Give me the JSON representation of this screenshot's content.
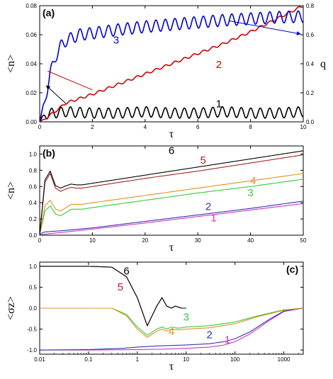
{
  "chart_data": [
    {
      "type": "line",
      "panel_label": "(a)",
      "xlabel": "τ",
      "ylabel": "<n>",
      "y2label": "q",
      "xlim": [
        0,
        10
      ],
      "ylim": [
        0,
        0.08
      ],
      "y2lim": [
        0,
        0.8
      ],
      "x_ticks": [
        "0",
        "2",
        "4",
        "6",
        "8",
        "10"
      ],
      "y_ticks": [
        "0.00",
        "0.02",
        "0.04",
        "0.06",
        "0.08"
      ],
      "y2_ticks": [
        "0.0",
        "0.2",
        "0.4",
        "0.6",
        "0.8"
      ],
      "series": [
        {
          "label": "1",
          "color": "#000000",
          "axis": "left",
          "x": [
            0,
            0.2,
            0.5,
            1,
            2,
            3,
            4,
            5,
            6,
            7,
            8,
            9,
            10
          ],
          "y": [
            0,
            0.005,
            0.006,
            0.007,
            0.006,
            0.006,
            0.007,
            0.006,
            0.006,
            0.007,
            0.006,
            0.006,
            0.007
          ],
          "oscillation_amplitude": 0.0035,
          "oscillation_period": 0.36
        },
        {
          "label": "2",
          "color": "#cc0000",
          "axis": "right",
          "x": [
            0,
            0.2,
            0.5,
            1,
            2,
            3,
            4,
            5,
            6,
            7,
            8,
            9,
            10
          ],
          "y": [
            0,
            0.02,
            0.06,
            0.13,
            0.19,
            0.26,
            0.33,
            0.4,
            0.47,
            0.54,
            0.62,
            0.71,
            0.8
          ],
          "oscillation_amplitude": 0.008,
          "oscillation_period": 0.36
        },
        {
          "label": "3",
          "color": "#0000cc",
          "axis": "left",
          "x": [
            0,
            0.2,
            0.4,
            0.6,
            0.8,
            1.0,
            1.5,
            2,
            3,
            4,
            5,
            6,
            7,
            8,
            9,
            10
          ],
          "y": [
            0,
            0.015,
            0.033,
            0.045,
            0.052,
            0.056,
            0.06,
            0.061,
            0.0635,
            0.0655,
            0.067,
            0.0685,
            0.07,
            0.071,
            0.072,
            0.0725
          ],
          "oscillation_amplitude": 0.004,
          "oscillation_period": 0.36
        }
      ],
      "annotations": [
        {
          "text": "1",
          "x": 6.8,
          "y": 0.01
        },
        {
          "text": "2",
          "x": 6.8,
          "y": 0.037
        },
        {
          "text": "3",
          "x": 2.9,
          "y": 0.054
        }
      ]
    },
    {
      "type": "line",
      "panel_label": "(b)",
      "xlabel": "τ",
      "ylabel": "<n>",
      "xlim": [
        0,
        50
      ],
      "ylim": [
        0,
        1.1
      ],
      "x_ticks": [
        "0",
        "10",
        "20",
        "30",
        "40",
        "50"
      ],
      "y_ticks": [
        "0.0",
        "0.2",
        "0.4",
        "0.6",
        "0.8",
        "1.0"
      ],
      "series": [
        {
          "label": "1",
          "color": "#cc33cc",
          "x": [
            0,
            0.5,
            1,
            2,
            5,
            10,
            20,
            30,
            40,
            50
          ],
          "y": [
            0,
            0.008,
            0.012,
            0.02,
            0.04,
            0.075,
            0.15,
            0.23,
            0.31,
            0.39
          ]
        },
        {
          "label": "2",
          "color": "#3333aa",
          "x": [
            0,
            0.5,
            1,
            2,
            5,
            10,
            20,
            30,
            40,
            50
          ],
          "y": [
            0,
            0.03,
            0.04,
            0.045,
            0.06,
            0.09,
            0.17,
            0.25,
            0.33,
            0.42
          ]
        },
        {
          "label": "3",
          "color": "#33cc33",
          "x": [
            0,
            1,
            2,
            3,
            4,
            5,
            6,
            7,
            8,
            10,
            20,
            30,
            40,
            50
          ],
          "y": [
            0,
            0.3,
            0.36,
            0.26,
            0.24,
            0.28,
            0.32,
            0.32,
            0.32,
            0.34,
            0.43,
            0.52,
            0.6,
            0.69
          ]
        },
        {
          "label": "4",
          "color": "#e09020",
          "x": [
            0,
            1,
            2,
            3,
            4,
            5,
            6,
            7,
            8,
            10,
            20,
            30,
            40,
            50
          ],
          "y": [
            0,
            0.36,
            0.43,
            0.32,
            0.3,
            0.34,
            0.38,
            0.38,
            0.38,
            0.4,
            0.49,
            0.58,
            0.67,
            0.76
          ]
        },
        {
          "label": "5",
          "color": "#aa2222",
          "x": [
            0,
            1,
            2,
            3,
            4,
            5,
            6,
            7,
            8,
            10,
            20,
            30,
            40,
            50
          ],
          "y": [
            0,
            0.65,
            0.76,
            0.58,
            0.54,
            0.57,
            0.59,
            0.58,
            0.58,
            0.6,
            0.7,
            0.79,
            0.89,
            0.99
          ]
        },
        {
          "label": "6",
          "color": "#000000",
          "x": [
            0,
            1,
            2,
            3,
            4,
            5,
            6,
            7,
            8,
            10,
            20,
            30,
            40,
            50
          ],
          "y": [
            0,
            0.68,
            0.79,
            0.61,
            0.58,
            0.61,
            0.63,
            0.62,
            0.62,
            0.64,
            0.74,
            0.84,
            0.94,
            1.04
          ]
        }
      ],
      "annotations": [
        {
          "text": "1",
          "x": 33,
          "y": 0.17
        },
        {
          "text": "2",
          "x": 32,
          "y": 0.31
        },
        {
          "text": "3",
          "x": 40,
          "y": 0.48
        },
        {
          "text": "4",
          "x": 40.5,
          "y": 0.63
        },
        {
          "text": "5",
          "x": 31,
          "y": 0.88
        },
        {
          "text": "6",
          "x": 25,
          "y": 1.0
        }
      ]
    },
    {
      "type": "line",
      "panel_label": "(c)",
      "xlabel": "τ",
      "ylabel": "<σz>",
      "xscale": "log",
      "xlim": [
        0.01,
        2500
      ],
      "ylim": [
        -1.1,
        1.1
      ],
      "x_ticks": [
        "0.01",
        "0.1",
        "1",
        "10",
        "100",
        "1000"
      ],
      "y_ticks": [
        "-1.0",
        "-0.5",
        "0.0",
        "0.5",
        "1.0"
      ],
      "series": [
        {
          "label": "1",
          "color": "#cc33cc",
          "x": [
            0.01,
            0.1,
            1,
            3,
            10,
            30,
            60,
            100,
            200,
            500,
            1000,
            2500
          ],
          "y": [
            -1.0,
            -1.0,
            -0.99,
            -0.98,
            -0.96,
            -0.93,
            -0.88,
            -0.8,
            -0.62,
            -0.3,
            -0.08,
            0.0
          ]
        },
        {
          "label": "2",
          "color": "#3333aa",
          "x": [
            0.01,
            0.1,
            0.5,
            1,
            3,
            10,
            30,
            60,
            100,
            200,
            500,
            1000,
            2500
          ],
          "y": [
            -1.0,
            -0.99,
            -0.96,
            -0.93,
            -0.9,
            -0.88,
            -0.85,
            -0.8,
            -0.73,
            -0.57,
            -0.27,
            -0.07,
            0.0
          ]
        },
        {
          "label": "3",
          "color": "#33cc33",
          "x": [
            0.01,
            0.3,
            0.6,
            1,
            1.6,
            2.5,
            3.2,
            4,
            5,
            7,
            10,
            30,
            100,
            300,
            1000,
            2500
          ],
          "y": [
            0.0,
            0.0,
            -0.15,
            -0.45,
            -0.65,
            -0.5,
            -0.45,
            -0.5,
            -0.45,
            -0.48,
            -0.45,
            -0.42,
            -0.33,
            -0.18,
            -0.04,
            0.0
          ]
        },
        {
          "label": "4",
          "color": "#e09020",
          "x": [
            0.01,
            0.3,
            0.6,
            1,
            1.6,
            2.5,
            3.2,
            4,
            5,
            7,
            10,
            30,
            100,
            300,
            1000,
            2500
          ],
          "y": [
            0.0,
            0.0,
            -0.18,
            -0.5,
            -0.7,
            -0.55,
            -0.5,
            -0.55,
            -0.5,
            -0.52,
            -0.5,
            -0.47,
            -0.37,
            -0.2,
            -0.05,
            0.0
          ]
        },
        {
          "label": "5",
          "color": "#aa2222",
          "x": [
            0.01,
            0.1,
            0.3,
            0.6,
            1,
            1.6,
            2.5,
            3.2,
            4,
            5,
            6,
            8,
            10
          ],
          "y": [
            1.0,
            1.0,
            0.98,
            0.75,
            0.25,
            -0.42,
            0.05,
            0.25,
            0.05,
            0.0,
            0.05,
            0.0,
            0.0
          ]
        },
        {
          "label": "6",
          "color": "#000000",
          "x": [
            0.01,
            0.1,
            0.3,
            0.6,
            1,
            1.6,
            2.5,
            3.2,
            4,
            5,
            6,
            8,
            10
          ],
          "y": [
            1.0,
            1.0,
            0.98,
            0.75,
            0.25,
            -0.42,
            0.05,
            0.25,
            0.05,
            0.0,
            0.05,
            0.0,
            0.0
          ]
        }
      ],
      "annotations": [
        {
          "text": "1",
          "x": 70,
          "y": -0.84
        },
        {
          "text": "2",
          "x": 30,
          "y": -0.72
        },
        {
          "text": "3",
          "x": 10,
          "y": -0.3
        },
        {
          "text": "4",
          "x": 5,
          "y": -0.64
        },
        {
          "text": "5",
          "x": 0.45,
          "y": 0.42
        },
        {
          "text": "6",
          "x": 0.6,
          "y": 0.8
        }
      ]
    }
  ]
}
